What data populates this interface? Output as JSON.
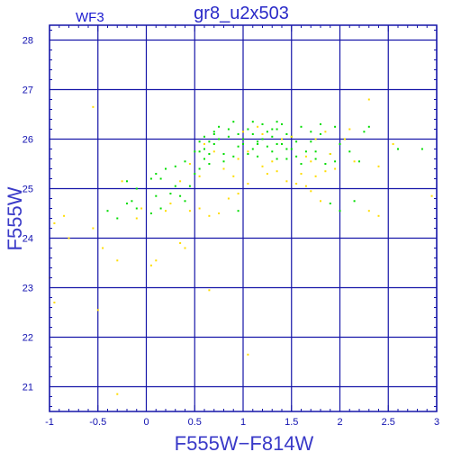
{
  "window": {
    "title": "gr8_u2x503",
    "corner_label": "WF3"
  },
  "colors": {
    "axes": "#1515a8",
    "grid": "#1515a8",
    "title": "#2a2ac8",
    "labels": "#3a3ac8",
    "series_green": "#00dd00",
    "series_yellow": "#ffdd00"
  },
  "chart_data": {
    "type": "scatter",
    "title": "gr8_u2x503",
    "annotation": "WF3",
    "xlabel": "F555W−F814W",
    "ylabel": "F555W",
    "xlim": [
      -1,
      3
    ],
    "ylim": [
      28.3,
      20.5
    ],
    "y_inverted": true,
    "grid": true,
    "x_ticks": [
      -1,
      -0.5,
      0,
      0.5,
      1,
      1.5,
      2,
      2.5,
      3
    ],
    "x_tick_labels": [
      "-1",
      "-0.5",
      "0",
      "0.5",
      "1",
      "1.5",
      "2",
      "2.5",
      "3"
    ],
    "y_ticks": [
      21,
      22,
      23,
      24,
      25,
      26,
      27,
      28
    ],
    "y_tick_labels": [
      "21",
      "22",
      "23",
      "24",
      "25",
      "26",
      "27",
      "28"
    ],
    "series": [
      {
        "color": "#00dd00",
        "points": [
          [
            -0.4,
            24.55
          ],
          [
            -0.3,
            24.4
          ],
          [
            -0.2,
            24.7
          ],
          [
            -0.15,
            24.75
          ],
          [
            -0.2,
            25.15
          ],
          [
            -0.1,
            24.6
          ],
          [
            0.05,
            24.5
          ],
          [
            0.1,
            24.85
          ],
          [
            0.15,
            24.6
          ],
          [
            0.25,
            24.9
          ],
          [
            0.35,
            24.85
          ],
          [
            0.4,
            24.75
          ],
          [
            0.45,
            25.05
          ],
          [
            0.5,
            25.3
          ],
          [
            0.1,
            25.3
          ],
          [
            0.2,
            25.4
          ],
          [
            0.3,
            25.45
          ],
          [
            0.4,
            25.55
          ],
          [
            0.55,
            25.4
          ],
          [
            0.6,
            25.6
          ],
          [
            0.55,
            25.75
          ],
          [
            0.6,
            25.8
          ],
          [
            0.65,
            25.7
          ],
          [
            0.7,
            25.9
          ],
          [
            0.75,
            26.0
          ],
          [
            0.8,
            25.7
          ],
          [
            0.6,
            26.05
          ],
          [
            0.7,
            26.15
          ],
          [
            0.75,
            26.25
          ],
          [
            0.85,
            26.2
          ],
          [
            0.9,
            26.35
          ],
          [
            0.95,
            26.1
          ],
          [
            1.0,
            25.9
          ],
          [
            1.0,
            26.0
          ],
          [
            1.05,
            25.7
          ],
          [
            1.05,
            26.2
          ],
          [
            1.1,
            25.8
          ],
          [
            1.1,
            26.1
          ],
          [
            1.15,
            25.9
          ],
          [
            1.2,
            26.0
          ],
          [
            1.2,
            26.3
          ],
          [
            1.25,
            26.15
          ],
          [
            1.3,
            25.75
          ],
          [
            1.3,
            26.05
          ],
          [
            1.35,
            25.6
          ],
          [
            1.35,
            26.2
          ],
          [
            1.4,
            25.9
          ],
          [
            1.4,
            26.3
          ],
          [
            1.45,
            26.1
          ],
          [
            1.45,
            25.6
          ],
          [
            1.5,
            25.8
          ],
          [
            1.5,
            26.05
          ],
          [
            1.55,
            25.65
          ],
          [
            1.6,
            25.5
          ],
          [
            1.65,
            25.75
          ],
          [
            1.7,
            25.95
          ],
          [
            1.75,
            25.6
          ],
          [
            1.8,
            26.1
          ],
          [
            1.85,
            25.5
          ],
          [
            1.9,
            25.7
          ],
          [
            1.95,
            25.55
          ],
          [
            2.0,
            25.9
          ],
          [
            2.05,
            26.0
          ],
          [
            2.1,
            25.75
          ],
          [
            2.15,
            24.75
          ],
          [
            2.2,
            25.55
          ],
          [
            2.25,
            26.15
          ],
          [
            2.3,
            26.25
          ],
          [
            2.6,
            25.8
          ],
          [
            2.85,
            25.8
          ],
          [
            0.65,
            25.5
          ],
          [
            0.8,
            25.55
          ],
          [
            0.9,
            25.65
          ],
          [
            0.95,
            25.85
          ],
          [
            1.15,
            25.95
          ],
          [
            1.25,
            25.85
          ],
          [
            1.3,
            26.2
          ],
          [
            1.35,
            26.35
          ],
          [
            1.1,
            26.35
          ],
          [
            0.85,
            26.05
          ],
          [
            0.7,
            26.1
          ],
          [
            0.5,
            25.75
          ],
          [
            0.55,
            25.95
          ],
          [
            0.65,
            25.95
          ],
          [
            1.7,
            26.15
          ],
          [
            1.8,
            26.3
          ],
          [
            1.6,
            26.25
          ],
          [
            1.95,
            26.25
          ],
          [
            1.75,
            25.75
          ],
          [
            1.55,
            25.95
          ],
          [
            2.0,
            24.55
          ],
          [
            1.9,
            24.7
          ],
          [
            0.95,
            24.55
          ],
          [
            0.3,
            25.05
          ],
          [
            0.15,
            25.2
          ],
          [
            0.05,
            25.2
          ],
          [
            -0.1,
            25.0
          ],
          [
            1.15,
            25.65
          ],
          [
            1.35,
            25.9
          ],
          [
            1.45,
            25.8
          ]
        ]
      },
      {
        "color": "#ffdd00",
        "points": [
          [
            -0.3,
            20.85
          ],
          [
            1.05,
            21.65
          ],
          [
            -0.95,
            22.7
          ],
          [
            -1.0,
            23.2
          ],
          [
            -0.5,
            22.55
          ],
          [
            0.65,
            22.95
          ],
          [
            -0.3,
            23.55
          ],
          [
            0.05,
            23.45
          ],
          [
            0.1,
            23.55
          ],
          [
            -0.45,
            23.8
          ],
          [
            0.4,
            23.8
          ],
          [
            0.35,
            23.9
          ],
          [
            -0.95,
            24.3
          ],
          [
            -0.85,
            24.45
          ],
          [
            -0.55,
            24.2
          ],
          [
            -0.8,
            24.0
          ],
          [
            0.45,
            24.55
          ],
          [
            0.55,
            24.6
          ],
          [
            0.65,
            24.45
          ],
          [
            0.75,
            24.5
          ],
          [
            0.85,
            24.8
          ],
          [
            0.95,
            24.9
          ],
          [
            1.05,
            25.1
          ],
          [
            1.25,
            25.3
          ],
          [
            1.35,
            25.35
          ],
          [
            1.45,
            25.15
          ],
          [
            1.55,
            25.1
          ],
          [
            1.65,
            25.05
          ],
          [
            1.7,
            24.95
          ],
          [
            1.75,
            25.25
          ],
          [
            1.8,
            24.75
          ],
          [
            1.85,
            25.35
          ],
          [
            1.9,
            25.7
          ],
          [
            1.95,
            25.4
          ],
          [
            2.05,
            26.0
          ],
          [
            2.1,
            26.2
          ],
          [
            2.15,
            25.55
          ],
          [
            2.3,
            26.8
          ],
          [
            2.4,
            25.45
          ],
          [
            2.55,
            25.9
          ],
          [
            0.95,
            25.6
          ],
          [
            1.05,
            25.75
          ],
          [
            1.2,
            26.1
          ],
          [
            1.3,
            25.55
          ],
          [
            1.5,
            26.05
          ],
          [
            1.6,
            25.3
          ],
          [
            1.7,
            25.55
          ],
          [
            1.75,
            26.0
          ],
          [
            1.85,
            26.15
          ],
          [
            0.6,
            25.9
          ],
          [
            0.7,
            25.75
          ],
          [
            0.8,
            25.4
          ],
          [
            -0.55,
            26.65
          ],
          [
            -0.1,
            24.4
          ],
          [
            -0.25,
            25.15
          ],
          [
            0.25,
            24.7
          ],
          [
            2.3,
            24.55
          ],
          [
            2.4,
            24.45
          ],
          [
            2.95,
            24.85
          ],
          [
            1.65,
            25.65
          ],
          [
            1.0,
            26.15
          ],
          [
            1.15,
            26.25
          ],
          [
            1.4,
            26.0
          ],
          [
            0.9,
            25.25
          ],
          [
            1.2,
            25.45
          ],
          [
            -0.05,
            24.6
          ],
          [
            0.2,
            24.55
          ],
          [
            0.35,
            25.15
          ],
          [
            0.45,
            25.5
          ],
          [
            0.55,
            25.25
          ]
        ]
      }
    ]
  }
}
